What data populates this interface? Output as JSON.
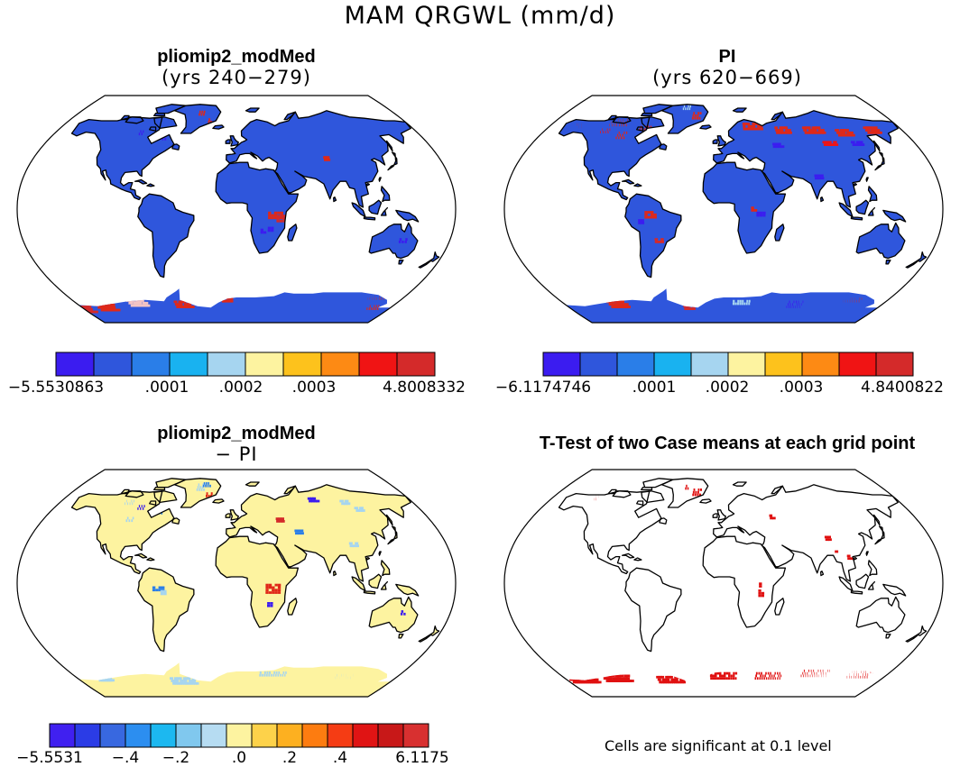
{
  "title": "MAM QRGWL (mm/d)",
  "panels": [
    {
      "title": "pliomip2_modMed",
      "subtitle": "(yrs 240−279)"
    },
    {
      "title": "PI",
      "subtitle": "(yrs 620−669)"
    },
    {
      "title": "pliomip2_modMed",
      "subtitle": "− PI"
    },
    {
      "title": "T-Test of two Case means at each grid point",
      "subtitle": ""
    }
  ],
  "colorbars": [
    {
      "colors": [
        "#3b1cf0",
        "#2f56dc",
        "#2a7ee8",
        "#19b2f0",
        "#a6d5f0",
        "#fdf3a0",
        "#fdc21c",
        "#fd8a14",
        "#f01414",
        "#d42a2a"
      ],
      "labels": [
        "−5.5530863",
        ".0001",
        ".0002",
        ".0003",
        "4.8008332"
      ]
    },
    {
      "colors": [
        "#3b1cf0",
        "#2f56dc",
        "#2a7ee8",
        "#19b2f0",
        "#a6d5f0",
        "#fdf3a0",
        "#fdc21c",
        "#fd8a14",
        "#f01414",
        "#d42a2a"
      ],
      "labels": [
        "−6.1174746",
        ".0001",
        ".0002",
        ".0003",
        "4.8400822"
      ]
    },
    {
      "colors": [
        "#4020f0",
        "#2b3ce6",
        "#3868e0",
        "#2c8ef0",
        "#1cb8f0",
        "#80c8ee",
        "#b6dcf2",
        "#fdf3a0",
        "#fdd24a",
        "#fdb020",
        "#fd7c10",
        "#f53c14",
        "#e01414",
        "#c81818",
        "#d83030"
      ],
      "labels": [
        "−5.5531",
        "−.4",
        "−.2",
        ".0",
        ".2",
        ".4",
        "6.1175"
      ]
    }
  ],
  "note": "Cells are significant at 0.1 level",
  "map_colors": {
    "land_base": "#2f56dc",
    "diff_base": "#fdf3a0",
    "signif": "#e01010",
    "coast": "#000000"
  }
}
